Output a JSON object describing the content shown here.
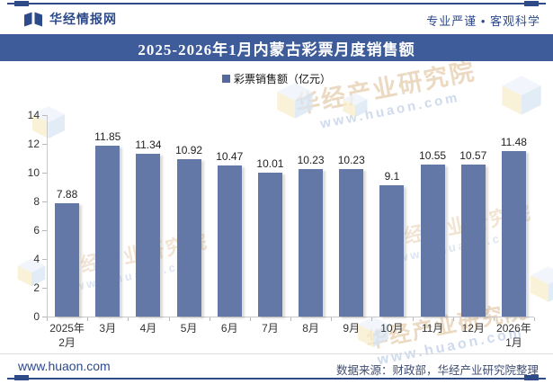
{
  "header": {
    "brand": "华经情报网",
    "tagline": "专业严谨 • 客观科学"
  },
  "title": "2025-2026年1月内蒙古彩票月度销售额",
  "legend": {
    "label": "彩票销售额（亿元）"
  },
  "chart_data": {
    "type": "bar",
    "title": "2025-2026年1月内蒙古彩票月度销售额",
    "series_name": "彩票销售额（亿元）",
    "categories": [
      "2025年\n2月",
      "3月",
      "4月",
      "5月",
      "6月",
      "7月",
      "8月",
      "9月",
      "10月",
      "11月",
      "12月",
      "2026年\n1月"
    ],
    "values": [
      7.88,
      11.85,
      11.34,
      10.92,
      10.47,
      10.01,
      10.23,
      10.23,
      9.1,
      10.55,
      10.57,
      11.48
    ],
    "ylabel": "",
    "xlabel": "",
    "ylim": [
      0,
      14
    ],
    "yticks": [
      0,
      2,
      4,
      6,
      8,
      10,
      12,
      14
    ],
    "grid": false,
    "legend_position": "top",
    "bar_color": "#6478a8"
  },
  "watermark": {
    "line1": "华经产业研究院",
    "line2": "www.huaon.com"
  },
  "footer": {
    "site": "www.huaon.com",
    "source": "数据来源：财政部，华经产业研究院整理"
  },
  "icons": {
    "logo": "huajing-book-logo",
    "legend_marker": "square"
  },
  "colors": {
    "accent": "#2e4a87",
    "title_bar": "#3e5c99",
    "bar": "#6478a8"
  }
}
